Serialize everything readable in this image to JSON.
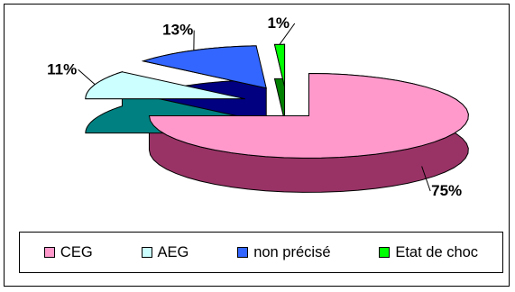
{
  "chart_data": {
    "type": "pie",
    "style": "3d-exploded",
    "categories": [
      "CEG",
      "AEG",
      "non précisé",
      "Etat de choc"
    ],
    "values": [
      75,
      11,
      13,
      1
    ],
    "labels": [
      "75%",
      "11%",
      "13%",
      "1%"
    ],
    "colors": {
      "CEG": {
        "top": "#ff99cc",
        "side": "#993366"
      },
      "AEG": {
        "top": "#ccffff",
        "side": "#008080"
      },
      "non précisé": {
        "top": "#3366ff",
        "side": "#000080"
      },
      "Etat de choc": {
        "top": "#00ff00",
        "side": "#008000"
      }
    },
    "legend_placement": "bottom"
  }
}
